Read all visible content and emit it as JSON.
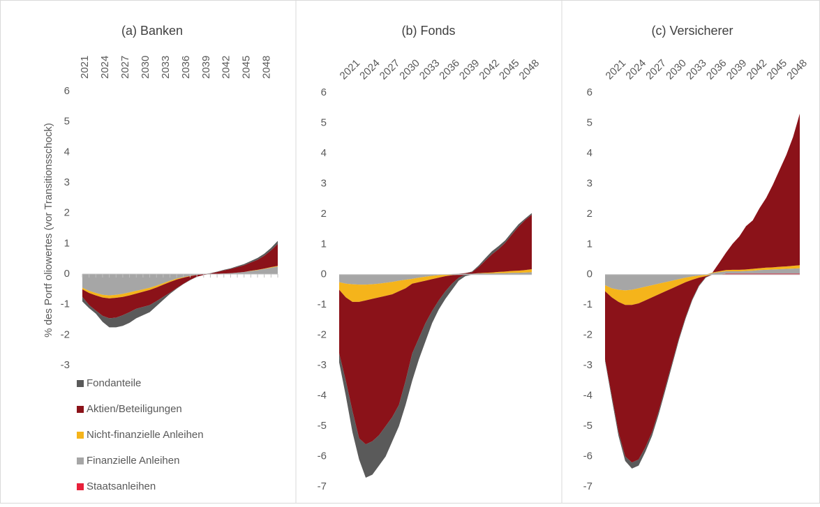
{
  "chart_data": [
    {
      "type": "area",
      "title": "(a) Banken",
      "y_label": "% des Portf oliowertes (vor Transitionsschock)",
      "categories": [
        "2021",
        null,
        null,
        "2024",
        null,
        null,
        "2027",
        null,
        null,
        "2030",
        null,
        null,
        "2033",
        null,
        null,
        "2036",
        null,
        null,
        "2039",
        null,
        null,
        "2042",
        null,
        null,
        "2045",
        null,
        null,
        "2048",
        null,
        null
      ],
      "ylim": [
        -3,
        6
      ],
      "yticks": [
        -3,
        -2,
        -1,
        0,
        1,
        2,
        3,
        4,
        5,
        6
      ],
      "legend": "bottom-left",
      "series": [
        {
          "name": "Fondanteile",
          "color": "#5a5a5a",
          "values": [
            -0.15,
            -0.1,
            -0.1,
            -0.2,
            -0.3,
            -0.32,
            -0.35,
            -0.35,
            -0.31,
            -0.27,
            -0.23,
            -0.16,
            -0.1,
            -0.04,
            -0.02,
            -0.01,
            -0.01,
            0,
            0,
            0.01,
            0.01,
            0.02,
            0.02,
            0.03,
            0.04,
            0.05,
            0.06,
            0.07,
            0.08,
            0.1
          ]
        },
        {
          "name": "Aktien/Beteiligungen",
          "color": "#8b1219",
          "values": [
            -0.25,
            -0.4,
            -0.5,
            -0.6,
            -0.65,
            -0.65,
            -0.6,
            -0.55,
            -0.5,
            -0.5,
            -0.5,
            -0.45,
            -0.4,
            -0.35,
            -0.28,
            -0.2,
            -0.12,
            -0.06,
            -0.02,
            0.02,
            0.06,
            0.1,
            0.14,
            0.18,
            0.22,
            0.27,
            0.33,
            0.42,
            0.55,
            0.72
          ]
        },
        {
          "name": "Nicht-finanzielle Anleihen",
          "color": "#f5b41b",
          "values": [
            -0.05,
            -0.07,
            -0.08,
            -0.09,
            -0.1,
            -0.1,
            -0.1,
            -0.1,
            -0.09,
            -0.08,
            -0.07,
            -0.06,
            -0.05,
            -0.04,
            -0.03,
            -0.02,
            -0.01,
            0,
            0,
            0,
            0,
            0,
            0,
            0,
            0,
            0.01,
            0.01,
            0.01,
            0.02,
            0.02
          ]
        },
        {
          "name": "Finanzielle Anleihen",
          "color": "#a6a6a6",
          "values": [
            -0.45,
            -0.55,
            -0.62,
            -0.68,
            -0.7,
            -0.68,
            -0.65,
            -0.6,
            -0.55,
            -0.5,
            -0.45,
            -0.38,
            -0.3,
            -0.22,
            -0.15,
            -0.1,
            -0.06,
            -0.03,
            -0.01,
            0,
            0.01,
            0.02,
            0.03,
            0.05,
            0.07,
            0.1,
            0.13,
            0.17,
            0.21,
            0.25
          ]
        },
        {
          "name": "Staatsanleihen",
          "color": "#e8203a",
          "values": [
            0,
            0,
            0,
            0,
            0,
            0,
            0,
            0,
            0,
            0,
            0,
            0,
            0,
            0,
            0,
            0,
            0,
            0,
            0,
            0,
            0,
            0,
            0,
            0,
            0,
            0,
            0,
            0,
            0,
            0
          ]
        }
      ]
    },
    {
      "type": "area",
      "title": "(b) Fonds",
      "categories": [
        "2021",
        null,
        null,
        "2024",
        null,
        null,
        "2027",
        null,
        null,
        "2030",
        null,
        null,
        "2033",
        null,
        null,
        "2036",
        null,
        null,
        "2039",
        null,
        null,
        "2042",
        null,
        null,
        "2045",
        null,
        null,
        "2048",
        null,
        null
      ],
      "ylim": [
        -7,
        6
      ],
      "yticks": [
        -7,
        -6,
        -5,
        -4,
        -3,
        -2,
        -1,
        0,
        1,
        2,
        3,
        4,
        5,
        6
      ],
      "series": [
        {
          "name": "Fondanteile",
          "color": "#5a5a5a",
          "values": [
            -0.3,
            -0.5,
            -0.7,
            -0.7,
            -1.1,
            -1.1,
            -1.0,
            -1.0,
            -0.8,
            -0.7,
            -0.8,
            -0.9,
            -0.7,
            -0.6,
            -0.4,
            -0.3,
            -0.25,
            -0.2,
            -0.1,
            -0.05,
            0.02,
            0.05,
            0.08,
            0.1,
            0.1,
            0.08,
            0.08,
            0.08,
            0.05,
            0.05
          ]
        },
        {
          "name": "Aktien/Beteiligungen",
          "color": "#8b1219",
          "values": [
            -2.1,
            -2.75,
            -3.6,
            -4.5,
            -4.75,
            -4.7,
            -4.55,
            -4.3,
            -4.05,
            -3.75,
            -3.05,
            -2.3,
            -1.85,
            -1.4,
            -1.05,
            -0.75,
            -0.5,
            -0.28,
            -0.1,
            0.02,
            0.05,
            0.2,
            0.4,
            0.6,
            0.75,
            0.95,
            1.2,
            1.45,
            1.65,
            1.8
          ]
        },
        {
          "name": "Nicht-finanzielle Anleihen",
          "color": "#f5b41b",
          "values": [
            -0.25,
            -0.45,
            -0.58,
            -0.57,
            -0.52,
            -0.48,
            -0.45,
            -0.43,
            -0.41,
            -0.35,
            -0.28,
            -0.16,
            -0.15,
            -0.13,
            -0.11,
            -0.08,
            -0.05,
            -0.02,
            0,
            0,
            0,
            0.01,
            0.02,
            0.03,
            0.04,
            0.05,
            0.06,
            0.07,
            0.08,
            0.1
          ]
        },
        {
          "name": "Finanzielle Anleihen",
          "color": "#a6a6a6",
          "values": [
            -0.25,
            -0.3,
            -0.32,
            -0.33,
            -0.33,
            -0.32,
            -0.3,
            -0.27,
            -0.24,
            -0.2,
            -0.17,
            -0.14,
            -0.1,
            -0.07,
            -0.04,
            -0.02,
            0,
            0.02,
            0.03,
            0.03,
            0.03,
            0.04,
            0.04,
            0.04,
            0.05,
            0.05,
            0.06,
            0.06,
            0.07,
            0.08
          ]
        },
        {
          "name": "Staatsanleihen",
          "color": "#e8203a",
          "values": [
            0,
            0,
            0,
            0,
            0,
            0,
            0,
            0,
            0,
            0,
            0,
            0,
            0,
            0,
            0,
            0,
            0,
            0,
            0,
            0,
            0,
            0,
            0,
            0,
            0,
            0,
            0,
            0,
            0,
            0
          ]
        }
      ]
    },
    {
      "type": "area",
      "title": "(c) Versicherer",
      "categories": [
        "2021",
        null,
        null,
        "2024",
        null,
        null,
        "2027",
        null,
        null,
        "2030",
        null,
        null,
        "2033",
        null,
        null,
        "2036",
        null,
        null,
        "2039",
        null,
        null,
        "2042",
        null,
        null,
        "2045",
        null,
        null,
        "2048",
        null,
        null
      ],
      "ylim": [
        -7,
        6
      ],
      "yticks": [
        -7,
        -6,
        -5,
        -4,
        -3,
        -2,
        -1,
        0,
        1,
        2,
        3,
        4,
        5,
        6
      ],
      "series": [
        {
          "name": "Fondanteile",
          "color": "#5a5a5a",
          "values": [
            -0.05,
            -0.1,
            -0.12,
            -0.15,
            -0.2,
            -0.2,
            -0.15,
            -0.12,
            -0.1,
            -0.1,
            -0.08,
            -0.06,
            -0.05,
            -0.04,
            -0.03,
            -0.02,
            0,
            0,
            0,
            0,
            0,
            0,
            0,
            0,
            0,
            0,
            0,
            0,
            0,
            0
          ]
        },
        {
          "name": "Aktien/Beteiligungen",
          "color": "#8b1219",
          "values": [
            -2.25,
            -3.25,
            -4.3,
            -5.0,
            -5.2,
            -5.15,
            -4.85,
            -4.45,
            -3.85,
            -3.15,
            -2.45,
            -1.75,
            -1.15,
            -0.63,
            -0.25,
            -0.03,
            0,
            0.28,
            0.57,
            0.86,
            1.1,
            1.43,
            1.6,
            1.98,
            2.3,
            2.73,
            3.2,
            3.68,
            4.25,
            5.0
          ]
        },
        {
          "name": "Nicht-finanzielle Anleihen",
          "color": "#f5b41b",
          "values": [
            -0.2,
            -0.3,
            -0.4,
            -0.48,
            -0.5,
            -0.5,
            -0.45,
            -0.4,
            -0.35,
            -0.3,
            -0.25,
            -0.2,
            -0.15,
            -0.11,
            -0.07,
            -0.04,
            0.02,
            0.03,
            0.04,
            0.05,
            0.05,
            0.05,
            0.06,
            0.06,
            0.07,
            0.07,
            0.08,
            0.08,
            0.09,
            0.1
          ]
        },
        {
          "name": "Finanzielle Anleihen",
          "color": "#a6a6a6",
          "values": [
            -0.35,
            -0.45,
            -0.5,
            -0.52,
            -0.5,
            -0.45,
            -0.4,
            -0.35,
            -0.3,
            -0.25,
            -0.2,
            -0.15,
            -0.1,
            -0.06,
            -0.03,
            -0.01,
            0.05,
            0.08,
            0.08,
            0.08,
            0.08,
            0.09,
            0.1,
            0.12,
            0.13,
            0.14,
            0.15,
            0.16,
            0.17,
            0.18
          ]
        },
        {
          "name": "Staatsanleihen",
          "color": "#e8203a",
          "values": [
            0,
            0,
            0,
            0,
            0,
            0,
            0,
            0,
            0,
            0,
            0,
            0,
            0,
            0,
            0,
            0,
            0,
            0,
            0.03,
            0.03,
            0.03,
            0.03,
            0.03,
            0.03,
            0.03,
            0.03,
            0.03,
            0.03,
            0.03,
            0.03
          ]
        }
      ]
    }
  ]
}
